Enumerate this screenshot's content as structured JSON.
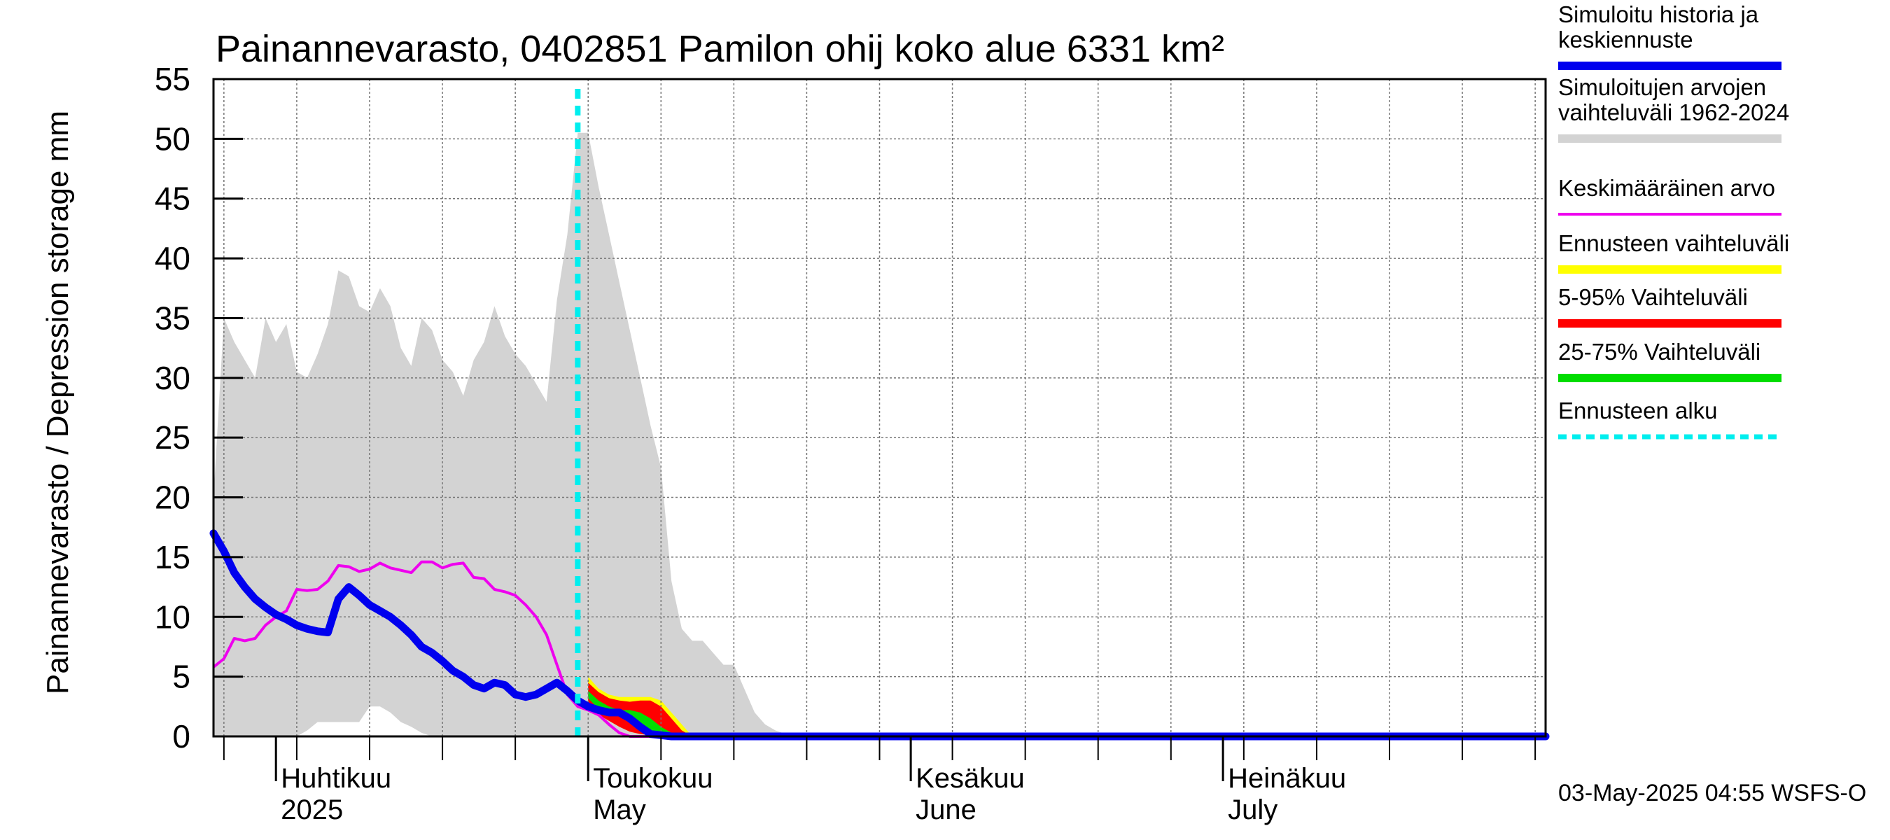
{
  "chart_data": {
    "type": "area",
    "title": "Painannevarasto, 0402851 Pamilon ohij koko alue 6331 km²",
    "ylabel": "Painannevarasto / Depression storage    mm",
    "ylim": [
      0,
      55
    ],
    "yticks": [
      "0",
      "5",
      "10",
      "15",
      "20",
      "25",
      "30",
      "35",
      "40",
      "45",
      "50",
      "55"
    ],
    "xlim": [
      "2025-03-26",
      "2025-08-01"
    ],
    "month_labels": [
      {
        "fi": "Huhtikuu",
        "en": "2025",
        "date": "2025-04-01"
      },
      {
        "fi": "Toukokuu",
        "en": "May",
        "date": "2025-05-01"
      },
      {
        "fi": "Kesäkuu",
        "en": "June",
        "date": "2025-06-01"
      },
      {
        "fi": "Heinäkuu",
        "en": "July",
        "date": "2025-07-01"
      }
    ],
    "grid": true,
    "legend_position": "right",
    "forecast_start": "2025-04-30",
    "timestamp": "03-May-2025 04:55 WSFS-O",
    "legend": {
      "hist": [
        "Simuloitu historia ja",
        "keskiennuste"
      ],
      "range": [
        "Simuloitujen arvojen",
        "vaihteluväli 1962-2024"
      ],
      "mean": [
        "Keskimääräinen arvo"
      ],
      "fc_range": [
        "Ennusteen vaihteluväli"
      ],
      "p5_95": [
        "5-95% Vaihteluväli"
      ],
      "p25_75": [
        "25-75% Vaihteluväli"
      ],
      "fc_start": [
        "Ennusteen alku"
      ]
    },
    "colors": {
      "hist": "#0000ee",
      "range": "#d3d3d3",
      "mean": "#ee00ee",
      "fc_range": "#ffff00",
      "p5_95": "#ff0000",
      "p25_75": "#00dd00",
      "fc_start": "#00eeee"
    },
    "series": [
      {
        "name": "Simuloitujen arvojen vaihteluväli 1962-2024",
        "x": [
          "2025-03-26",
          "2025-03-27",
          "2025-03-28",
          "2025-03-29",
          "2025-03-30",
          "2025-03-31",
          "2025-04-01",
          "2025-04-02",
          "2025-04-03",
          "2025-04-04",
          "2025-04-05",
          "2025-04-06",
          "2025-04-07",
          "2025-04-08",
          "2025-04-09",
          "2025-04-10",
          "2025-04-11",
          "2025-04-12",
          "2025-04-13",
          "2025-04-14",
          "2025-04-15",
          "2025-04-16",
          "2025-04-17",
          "2025-04-18",
          "2025-04-19",
          "2025-04-20",
          "2025-04-21",
          "2025-04-22",
          "2025-04-23",
          "2025-04-24",
          "2025-04-25",
          "2025-04-26",
          "2025-04-27",
          "2025-04-28",
          "2025-04-29",
          "2025-04-30",
          "2025-05-01",
          "2025-05-02",
          "2025-05-03",
          "2025-05-04",
          "2025-05-05",
          "2025-05-06",
          "2025-05-07",
          "2025-05-08",
          "2025-05-09",
          "2025-05-10",
          "2025-05-11",
          "2025-05-12",
          "2025-05-13",
          "2025-05-14",
          "2025-05-15",
          "2025-05-16",
          "2025-05-17",
          "2025-05-18",
          "2025-05-19",
          "2025-05-20",
          "2025-05-21",
          "2025-05-22",
          "2025-05-23",
          "2025-05-24",
          "2025-05-25",
          "2025-05-26",
          "2025-05-27",
          "2025-05-28",
          "2025-05-29",
          "2025-05-30",
          "2025-05-31",
          "2025-06-01"
        ],
        "upper": [
          20,
          35,
          33,
          31.5,
          30,
          35,
          33,
          34.5,
          30.5,
          30,
          32,
          34.5,
          39,
          38.5,
          36,
          35.5,
          37.5,
          36,
          32.5,
          31,
          35,
          34,
          31.5,
          30.5,
          28.5,
          31.5,
          33,
          36,
          33.5,
          32,
          31,
          29.5,
          28,
          36.5,
          42,
          50.5,
          50.5,
          46,
          42,
          38,
          34,
          30,
          26,
          22.5,
          13,
          9,
          8,
          8,
          7,
          6,
          6,
          4,
          2,
          1,
          0.5,
          0.2,
          0,
          0,
          0,
          0,
          0,
          0,
          0,
          0,
          0,
          0,
          0,
          0
        ],
        "lower": [
          0,
          0,
          0,
          0,
          0,
          0,
          0,
          0,
          0,
          0.5,
          1.2,
          1.2,
          1.2,
          1.2,
          1.2,
          2.5,
          2.5,
          2,
          1.2,
          0.8,
          0.3,
          0,
          0,
          0,
          0,
          0,
          0,
          0,
          0,
          0,
          0,
          0,
          0,
          0,
          0,
          0,
          0,
          0,
          0,
          0,
          0,
          0,
          0,
          0,
          0,
          0,
          0,
          0,
          0,
          0,
          0,
          0,
          0,
          0,
          0,
          0,
          0,
          0,
          0,
          0,
          0,
          0,
          0,
          0,
          0,
          0,
          0,
          0
        ]
      },
      {
        "name": "Keskimääräinen arvo",
        "x": [
          "2025-03-26",
          "2025-03-27",
          "2025-03-28",
          "2025-03-29",
          "2025-03-30",
          "2025-03-31",
          "2025-04-01",
          "2025-04-02",
          "2025-04-03",
          "2025-04-04",
          "2025-04-05",
          "2025-04-06",
          "2025-04-07",
          "2025-04-08",
          "2025-04-09",
          "2025-04-10",
          "2025-04-11",
          "2025-04-12",
          "2025-04-13",
          "2025-04-14",
          "2025-04-15",
          "2025-04-16",
          "2025-04-17",
          "2025-04-18",
          "2025-04-19",
          "2025-04-20",
          "2025-04-21",
          "2025-04-22",
          "2025-04-23",
          "2025-04-24",
          "2025-04-25",
          "2025-04-26",
          "2025-04-27",
          "2025-04-28",
          "2025-04-29",
          "2025-04-30",
          "2025-05-01",
          "2025-05-02",
          "2025-05-03",
          "2025-05-04",
          "2025-05-05",
          "2025-05-06",
          "2025-05-07",
          "2025-05-08",
          "2025-05-09",
          "2025-08-01"
        ],
        "values": [
          5.8,
          6.5,
          8.2,
          8,
          8.2,
          9.3,
          10,
          10.5,
          12.3,
          12.2,
          12.3,
          13,
          14.3,
          14.2,
          13.8,
          14,
          14.5,
          14.1,
          13.9,
          13.7,
          14.6,
          14.6,
          14.1,
          14.4,
          14.5,
          13.3,
          13.2,
          12.3,
          12.1,
          11.8,
          11,
          10,
          8.5,
          6,
          3.5,
          2.5,
          2.2,
          1.8,
          1,
          0.3,
          0,
          0,
          0,
          0,
          0,
          0
        ]
      },
      {
        "name": "Simuloitu historia ja keskiennuste",
        "x": [
          "2025-03-26",
          "2025-03-27",
          "2025-03-28",
          "2025-03-29",
          "2025-03-30",
          "2025-03-31",
          "2025-04-01",
          "2025-04-02",
          "2025-04-03",
          "2025-04-04",
          "2025-04-05",
          "2025-04-06",
          "2025-04-07",
          "2025-04-08",
          "2025-04-09",
          "2025-04-10",
          "2025-04-11",
          "2025-04-12",
          "2025-04-13",
          "2025-04-14",
          "2025-04-15",
          "2025-04-16",
          "2025-04-17",
          "2025-04-18",
          "2025-04-19",
          "2025-04-20",
          "2025-04-21",
          "2025-04-22",
          "2025-04-23",
          "2025-04-24",
          "2025-04-25",
          "2025-04-26",
          "2025-04-27",
          "2025-04-28",
          "2025-04-29",
          "2025-04-30",
          "2025-05-01",
          "2025-05-02",
          "2025-05-03",
          "2025-05-04",
          "2025-05-05",
          "2025-05-06",
          "2025-05-07",
          "2025-05-08",
          "2025-05-09",
          "2025-05-10",
          "2025-05-11",
          "2025-05-12",
          "2025-08-01"
        ],
        "values": [
          17,
          15.5,
          13.7,
          12.5,
          11.5,
          10.8,
          10.2,
          9.8,
          9.3,
          9,
          8.8,
          8.7,
          11.5,
          12.5,
          11.8,
          11,
          10.5,
          10,
          9.3,
          8.5,
          7.5,
          7,
          6.3,
          5.5,
          5,
          4.3,
          4,
          4.5,
          4.3,
          3.5,
          3.3,
          3.5,
          4,
          4.5,
          3.8,
          3,
          2.5,
          2.2,
          2,
          2,
          1.5,
          0.8,
          0.2,
          0.1,
          0,
          0,
          0,
          0,
          0
        ]
      }
    ],
    "forecast_bands": {
      "x": [
        "2025-05-01",
        "2025-05-02",
        "2025-05-03",
        "2025-05-04",
        "2025-05-05",
        "2025-05-06",
        "2025-05-07",
        "2025-05-08",
        "2025-05-09",
        "2025-05-10",
        "2025-05-11"
      ],
      "fc_range": {
        "upper": [
          5,
          4,
          3.5,
          3.3,
          3.3,
          3.3,
          3.3,
          3,
          2,
          1,
          0
        ],
        "lower": [
          2.5,
          1.8,
          1.3,
          0.8,
          0.4,
          0.2,
          0.1,
          0,
          0,
          0,
          0
        ]
      },
      "p5_95": {
        "upper": [
          4.5,
          3.7,
          3.2,
          3,
          2.9,
          3,
          3,
          2.5,
          1.5,
          0.5,
          0
        ],
        "lower": [
          2.5,
          1.8,
          1.3,
          0.8,
          0.4,
          0.2,
          0.1,
          0,
          0,
          0,
          0
        ]
      },
      "p25_75": {
        "upper": [
          3.8,
          3,
          2.5,
          2.2,
          2.2,
          2,
          1.5,
          0.8,
          0.3,
          0,
          0
        ],
        "lower": [
          3.2,
          2.3,
          1.8,
          1.7,
          1.5,
          1.2,
          0.3,
          0,
          0,
          0,
          0
        ]
      }
    }
  }
}
